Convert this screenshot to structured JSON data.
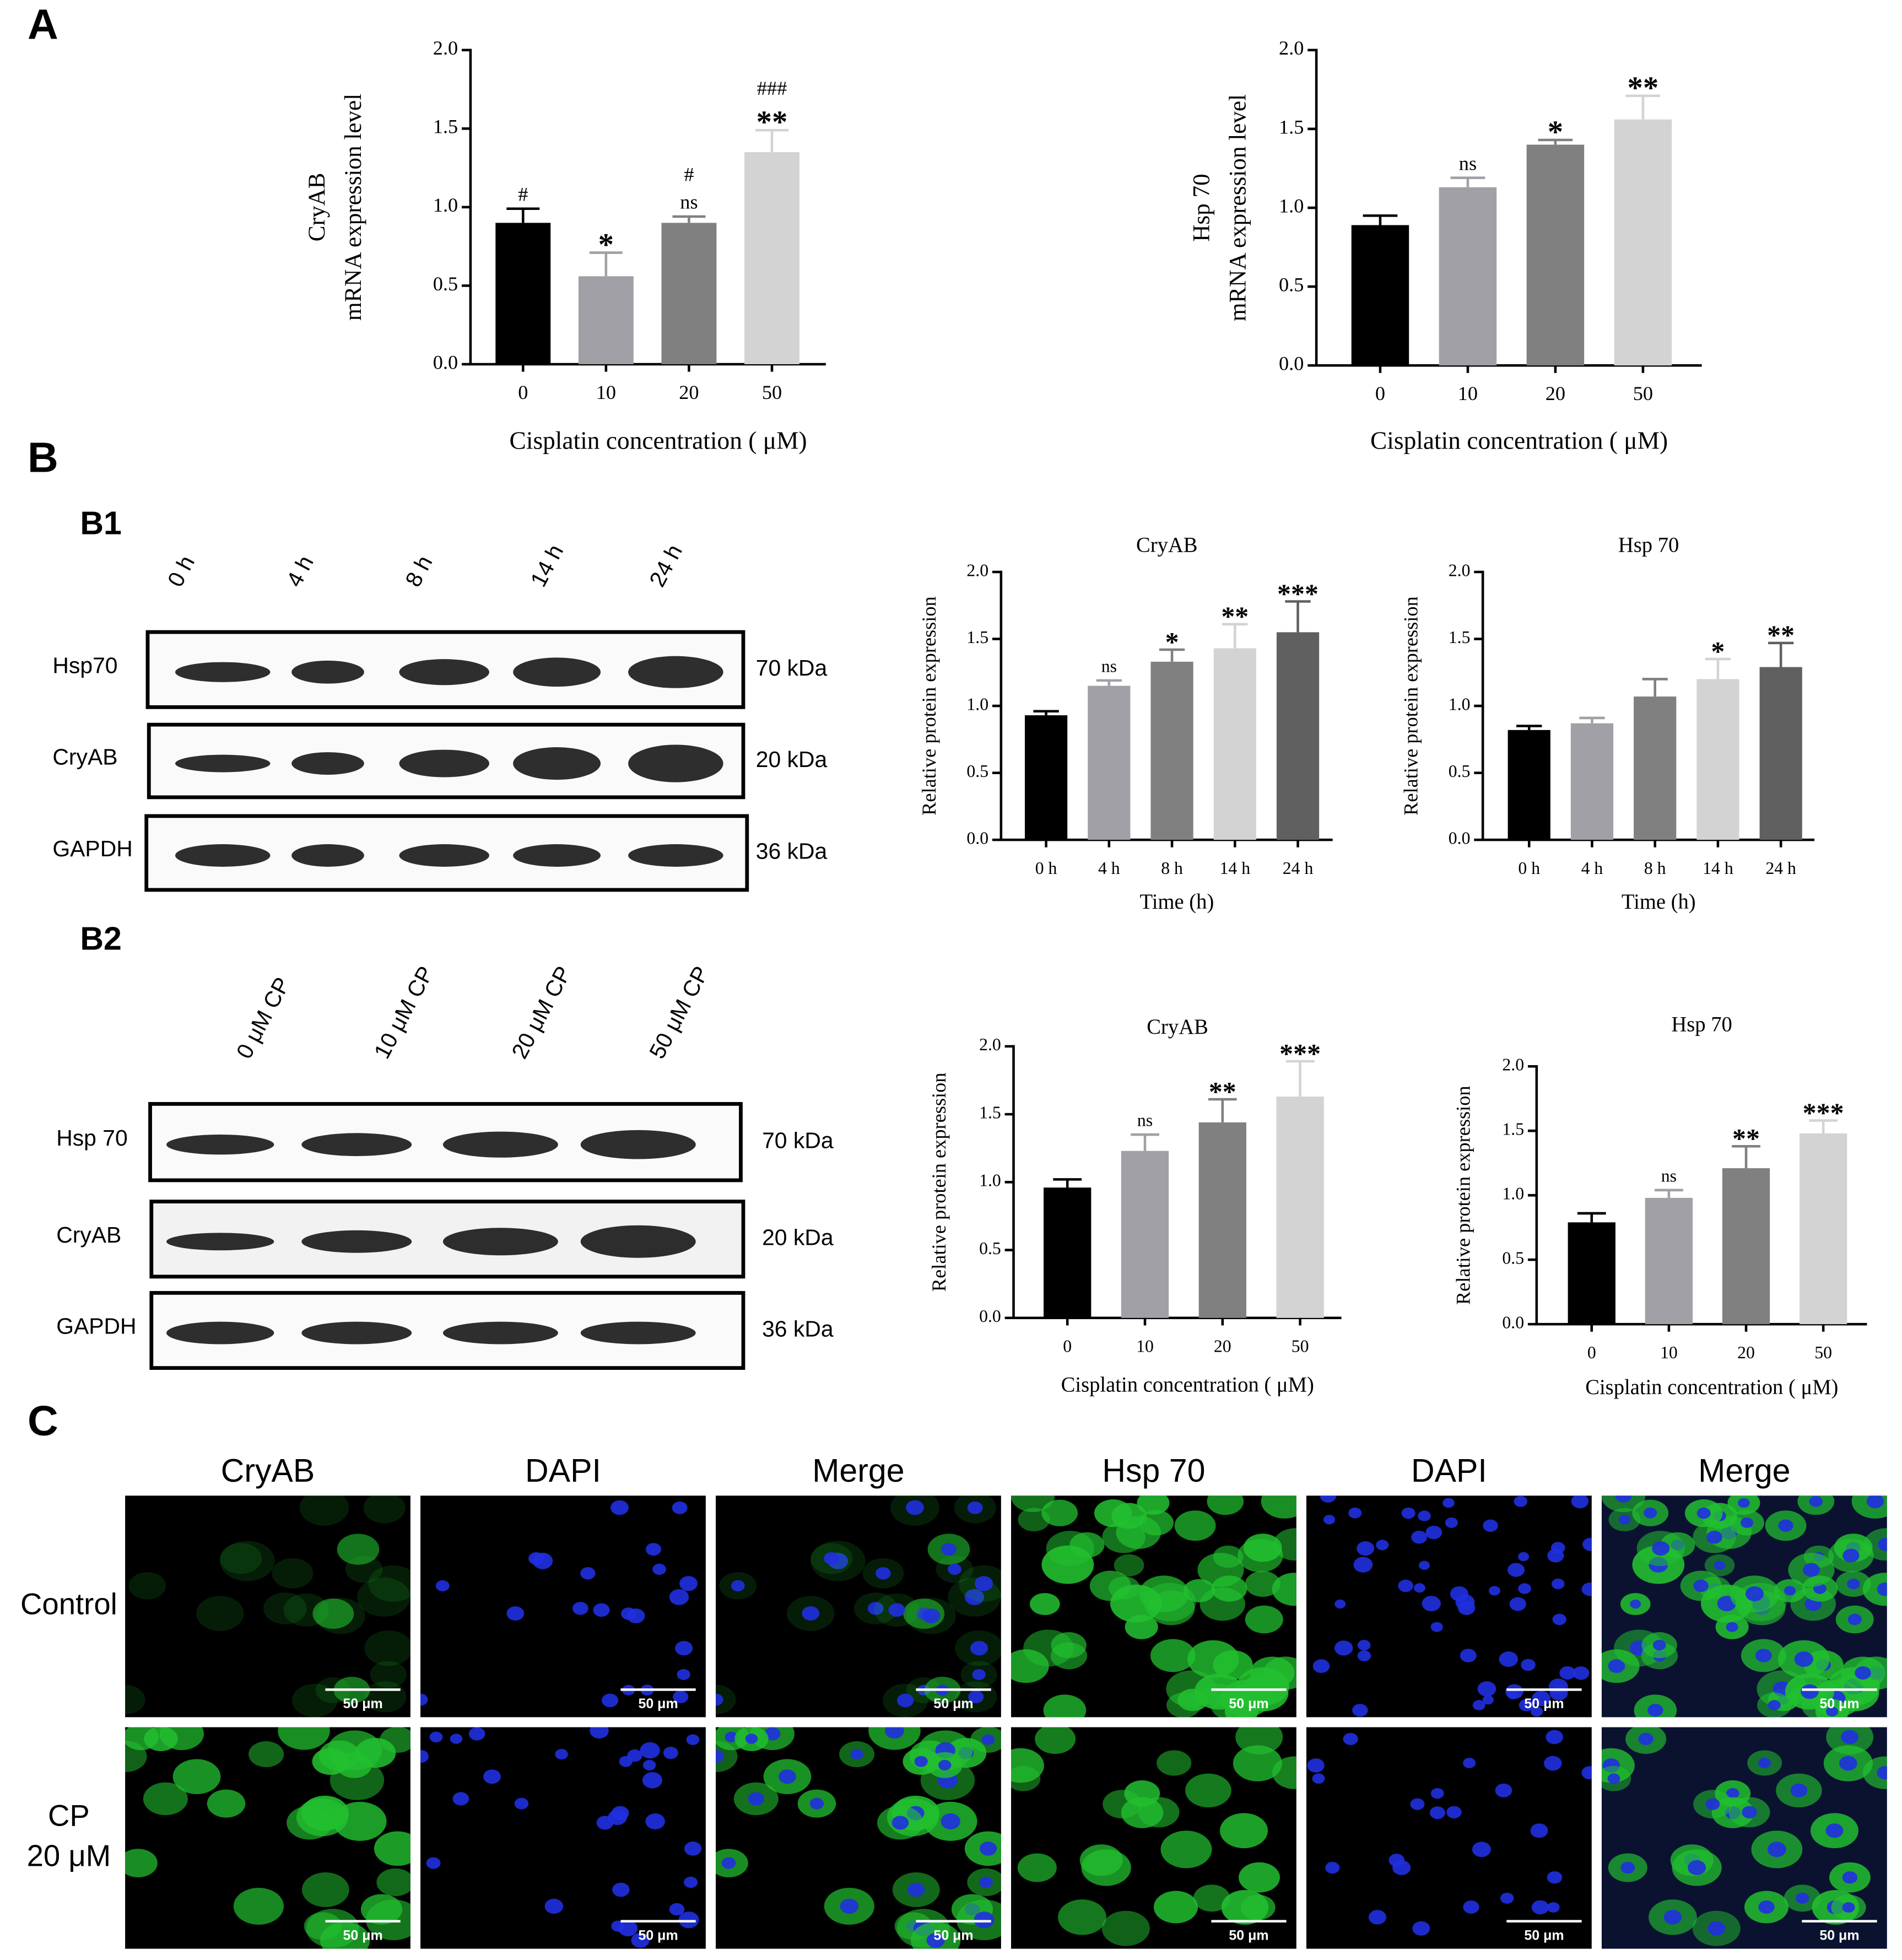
{
  "chart_data": [
    {
      "type": "bar",
      "ylabel": [
        "CryAB",
        "mRNA expression level"
      ],
      "xlabel": "Cisplatin concentration ( μM)",
      "categories": [
        "0",
        "10",
        "20",
        "50"
      ],
      "values": [
        0.9,
        0.56,
        0.9,
        1.35
      ],
      "errors": [
        0.09,
        0.15,
        0.04,
        0.14
      ],
      "significance": [
        [
          "#"
        ],
        [
          "*"
        ],
        [
          "#",
          "ns"
        ],
        [
          "###",
          "**"
        ]
      ],
      "colors": [
        "#000000",
        "#a0a0a6",
        "#808080",
        "#d3d3d3"
      ],
      "ylim": [
        0,
        2
      ],
      "yticks": [
        {
          "value": 0,
          "label": "0.0"
        },
        0.5,
        {
          "value": 1,
          "label": "1.0"
        },
        1.5,
        {
          "value": 2,
          "label": "2.0"
        }
      ]
    },
    {
      "type": "bar",
      "ylabel": [
        "Hsp 70",
        "mRNA expression level"
      ],
      "xlabel": "Cisplatin concentration ( μM)",
      "categories": [
        "0",
        "10",
        "20",
        "50"
      ],
      "values": [
        0.89,
        1.13,
        1.4,
        1.56
      ],
      "errors": [
        0.06,
        0.06,
        0.03,
        0.15
      ],
      "significance": [
        [],
        [
          "ns"
        ],
        [
          "*"
        ],
        [
          "**"
        ]
      ],
      "colors": [
        "#000000",
        "#a0a0a6",
        "#808080",
        "#d3d3d3"
      ],
      "ylim": [
        0,
        2
      ],
      "yticks": [
        {
          "value": 0,
          "label": "0.0"
        },
        0.5,
        {
          "value": 1,
          "label": "1.0"
        },
        1.5,
        {
          "value": 2,
          "label": "2.0"
        }
      ]
    },
    {
      "type": "bar",
      "title": "CryAB",
      "ylabel": "Relative protein expression",
      "xlabel": "Time (h)",
      "categories": [
        "0 h",
        "4 h",
        "8 h",
        "14 h",
        "24 h"
      ],
      "values": [
        0.93,
        1.15,
        1.33,
        1.43,
        1.55
      ],
      "errors": [
        0.03,
        0.04,
        0.09,
        0.18,
        0.23
      ],
      "significance": [
        [],
        [
          "ns"
        ],
        [
          "*"
        ],
        [
          "**"
        ],
        [
          "***"
        ]
      ],
      "colors": [
        "#000000",
        "#a0a0a6",
        "#808080",
        "#d3d3d3",
        "#606060"
      ],
      "ylim": [
        0,
        2
      ],
      "yticks": [
        {
          "value": 0,
          "label": "0.0"
        },
        0.5,
        {
          "value": 1,
          "label": "1.0"
        },
        1.5,
        {
          "value": 2,
          "label": "2.0"
        }
      ]
    },
    {
      "type": "bar",
      "title": "Hsp 70",
      "ylabel": "Relative protein expression",
      "xlabel": "Time (h)",
      "categories": [
        "0 h",
        "4 h",
        "8 h",
        "14 h",
        "24 h"
      ],
      "values": [
        0.82,
        0.87,
        1.07,
        1.2,
        1.29
      ],
      "errors": [
        0.03,
        0.04,
        0.13,
        0.15,
        0.18
      ],
      "significance": [
        [],
        [],
        [],
        [
          "*"
        ],
        [
          "**"
        ]
      ],
      "colors": [
        "#000000",
        "#a0a0a6",
        "#808080",
        "#d3d3d3",
        "#606060"
      ],
      "ylim": [
        0,
        2
      ],
      "yticks": [
        {
          "value": 0,
          "label": "0.0"
        },
        0.5,
        {
          "value": 1,
          "label": "1.0"
        },
        1.5,
        {
          "value": 2,
          "label": "2.0"
        }
      ]
    },
    {
      "type": "bar",
      "title": "CryAB",
      "ylabel": "Relative protein expression",
      "xlabel": "Cisplatin concentration ( μM)",
      "categories": [
        "0",
        "10",
        "20",
        "50"
      ],
      "values": [
        0.96,
        1.23,
        1.44,
        1.63
      ],
      "errors": [
        0.06,
        0.12,
        0.17,
        0.26
      ],
      "significance": [
        [],
        [
          "ns"
        ],
        [
          "**"
        ],
        [
          "***"
        ]
      ],
      "colors": [
        "#000000",
        "#a0a0a6",
        "#808080",
        "#d3d3d3"
      ],
      "ylim": [
        0,
        2
      ],
      "yticks": [
        {
          "value": 0,
          "label": "0.0"
        },
        0.5,
        {
          "value": 1,
          "label": "1.0"
        },
        1.5,
        {
          "value": 2,
          "label": "2.0"
        }
      ]
    },
    {
      "type": "bar",
      "title": "Hsp 70",
      "ylabel": "Relative protein expression",
      "xlabel": "Cisplatin concentration ( μM)",
      "categories": [
        "0",
        "10",
        "20",
        "50"
      ],
      "values": [
        0.79,
        0.98,
        1.21,
        1.48
      ],
      "errors": [
        0.07,
        0.06,
        0.17,
        0.1
      ],
      "significance": [
        [],
        [
          "ns"
        ],
        [
          "**"
        ],
        [
          "***"
        ]
      ],
      "colors": [
        "#000000",
        "#a0a0a6",
        "#808080",
        "#d3d3d3"
      ],
      "ylim": [
        0,
        2
      ],
      "yticks": [
        {
          "value": 0,
          "label": "0.0"
        },
        0.5,
        {
          "value": 1,
          "label": "1.0"
        },
        1.5,
        {
          "value": 2,
          "label": "2.0"
        }
      ]
    }
  ],
  "panels": [
    "A",
    "B",
    "B1",
    "B2",
    "C"
  ],
  "blots": [
    {
      "lanes": [
        "0 h",
        "4 h",
        "8 h",
        "14 h",
        "24 h"
      ],
      "rows": [
        "Hsp70",
        "CryAB",
        "GAPDH"
      ],
      "sizes": [
        "70 kDa",
        "20 kDa",
        "36 kDa"
      ]
    },
    {
      "lanes": [
        "0 μM CP",
        "10 μM CP",
        "20 μM CP",
        "50 μM CP"
      ],
      "rows": [
        "Hsp 70",
        "CryAB",
        "GAPDH"
      ],
      "sizes": [
        "70 kDa",
        "20 kDa",
        "36 kDa"
      ]
    }
  ],
  "microscopy": {
    "columns": [
      "CryAB",
      "DAPI",
      "Merge",
      "Hsp 70",
      "DAPI",
      "Merge"
    ],
    "rows": [
      [
        "Control"
      ],
      [
        "CP",
        "20 μM"
      ]
    ],
    "scale_bar": "50 μm"
  }
}
